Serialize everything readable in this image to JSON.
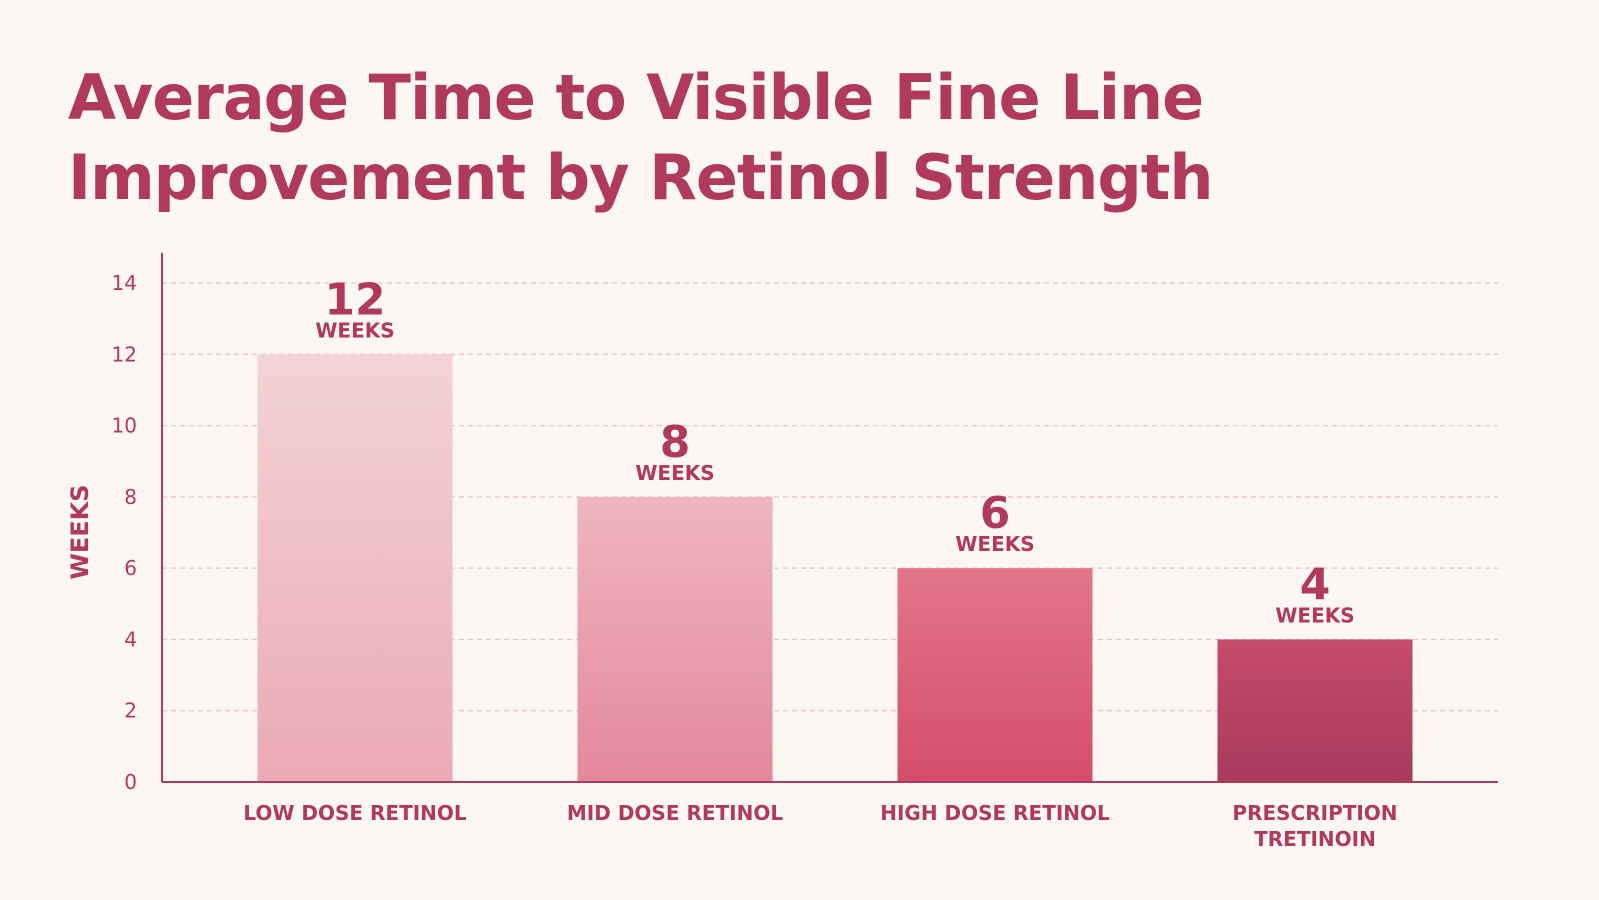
{
  "chart_data": {
    "type": "bar",
    "title": [
      "Average Time to Visible Fine Line",
      "Improvement by Retinol Strength"
    ],
    "ylabel": "WEEKS",
    "xlabel": "",
    "categories": [
      [
        "LOW DOSE RETINOL"
      ],
      [
        "MID DOSE RETINOL"
      ],
      [
        "HIGH DOSE RETINOL"
      ],
      [
        "PRESCRIPTION",
        "TRETINOIN"
      ]
    ],
    "values": [
      12,
      8,
      6,
      4
    ],
    "value_unit_label": "WEEKS",
    "ylim": [
      0,
      14
    ],
    "yticks": [
      0,
      2,
      4,
      6,
      8,
      10,
      12,
      14
    ],
    "grid": true,
    "grid_style": "dashed",
    "legend": "none",
    "bar_colors": [
      [
        "#f2d3d6",
        "#ebaab5"
      ],
      [
        "#efb6bf",
        "#e3889a"
      ],
      [
        "#e27689",
        "#d44d6a"
      ],
      [
        "#c44b6b",
        "#a83a5e"
      ]
    ],
    "text_color": "#b03a5e",
    "axis_color": "#b03a5e",
    "grid_color": "#e6c4c9"
  }
}
